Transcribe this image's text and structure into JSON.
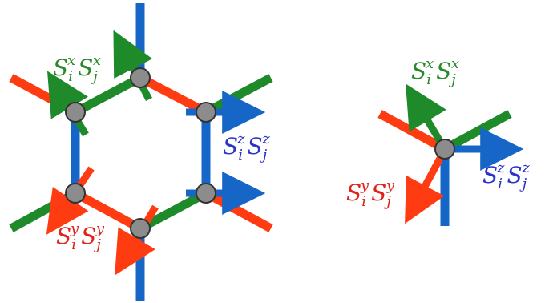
{
  "colors": {
    "x_bond": "#1e8a2a",
    "y_bond": "#ff3b12",
    "z_bond": "#1566c7",
    "site_fill": "#8c8c8c",
    "site_stroke": "#333333",
    "label_x": "#2a8a2a",
    "label_y": "#e0221a",
    "label_z": "#2a34c8"
  },
  "labels": {
    "x_operator": {
      "S": "S",
      "i": "i",
      "j": "j",
      "comp": "x"
    },
    "y_operator": {
      "S": "S",
      "i": "i",
      "j": "j",
      "comp": "y"
    },
    "z_operator": {
      "S": "S",
      "i": "i",
      "j": "j",
      "comp": "z"
    }
  }
}
